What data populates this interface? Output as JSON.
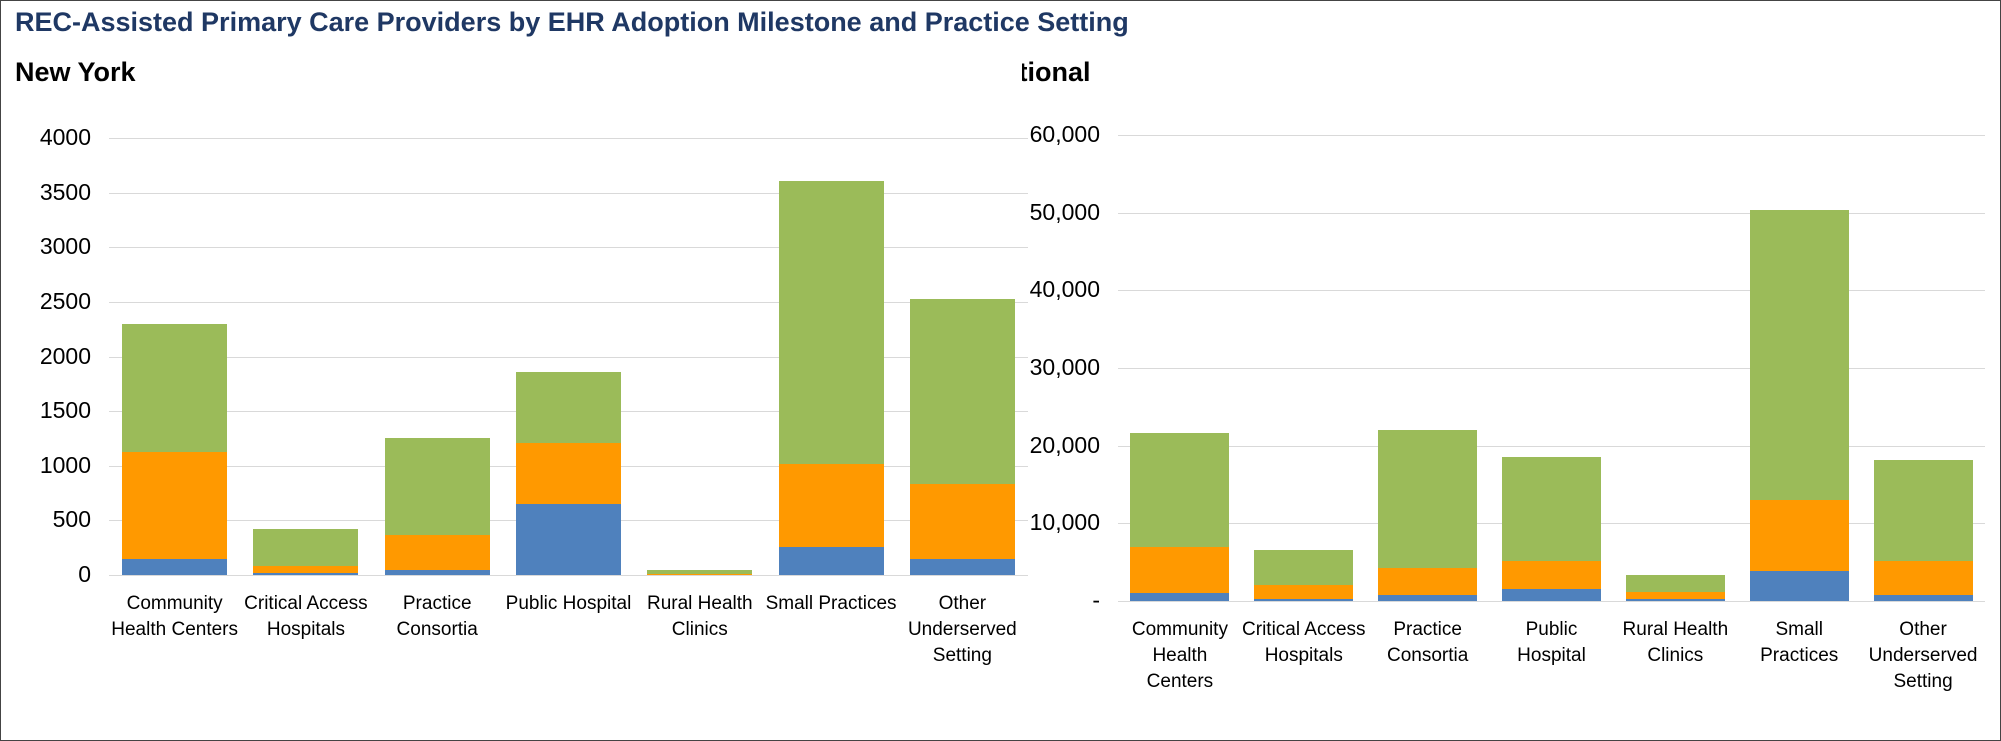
{
  "title": "REC-Assisted Primary Care Providers by EHR Adoption Milestone and Practice Setting",
  "chart_data": [
    {
      "type": "stacked-bar",
      "title": "New York",
      "categories": [
        "Community Health Centers",
        "Critical Access Hospitals",
        "Practice Consortia",
        "Public Hospital",
        "Rural Health Clinics",
        "Small Practices",
        "Other Underserved Setting"
      ],
      "series": [
        {
          "color": "#4f81bd",
          "values": [
            150,
            20,
            50,
            650,
            5,
            260,
            150
          ]
        },
        {
          "color": "#ff9900",
          "values": [
            980,
            60,
            320,
            560,
            5,
            760,
            680
          ]
        },
        {
          "color": "#9bbb59",
          "values": [
            1170,
            340,
            880,
            650,
            40,
            2590,
            1700
          ]
        }
      ],
      "ylim": [
        0,
        4000
      ],
      "yticks": [
        0,
        500,
        1000,
        1500,
        2000,
        2500,
        3000,
        3500,
        4000
      ],
      "grid": true
    },
    {
      "type": "stacked-bar",
      "title": "National",
      "categories": [
        "Community Health Centers",
        "Critical Access Hospitals",
        "Practice Consortia",
        "Public Hospital",
        "Rural Health Clinics",
        "Small Practices",
        "Other Underserved Setting"
      ],
      "series": [
        {
          "color": "#4f81bd",
          "values": [
            1000,
            300,
            800,
            1600,
            300,
            3900,
            800
          ]
        },
        {
          "color": "#ff9900",
          "values": [
            5900,
            1800,
            3500,
            3600,
            800,
            9100,
            4300
          ]
        },
        {
          "color": "#9bbb59",
          "values": [
            14700,
            4500,
            17700,
            13300,
            2300,
            37300,
            13100
          ]
        }
      ],
      "ylim": [
        0,
        60000
      ],
      "yticks": [
        {
          "value": 0,
          "label": "-"
        },
        {
          "value": 10000,
          "label": "10,000"
        },
        {
          "value": 20000,
          "label": "20,000"
        },
        {
          "value": 30000,
          "label": "30,000"
        },
        {
          "value": 40000,
          "label": "40,000"
        },
        {
          "value": 50000,
          "label": "50,000"
        },
        {
          "value": 60000,
          "label": "60,000"
        }
      ],
      "grid": true
    }
  ]
}
